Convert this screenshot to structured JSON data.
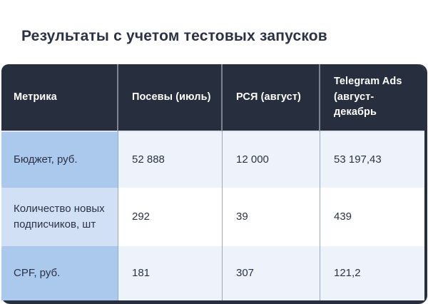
{
  "page": {
    "background": "#ffffff"
  },
  "colors": {
    "header_bg": "#272e3d",
    "header_text": "#ffffff",
    "title_text": "#2b3245",
    "label_blue": "#abc9ed",
    "label_blue_light": "#d2e0f6",
    "cell_light": "#eef3fb",
    "cell_white": "#ffffff",
    "divider_header": "#7d8390",
    "divider_body": "#9fa8b6"
  },
  "chart_data": {
    "type": "table",
    "title": "Результаты с учетом тестовых запусков",
    "columns": [
      "Метрика",
      "Посевы (июль)",
      "РСЯ (август)",
      "Telegram Ads (август-декабрь"
    ],
    "rows": [
      {
        "label": "Бюджет, руб.",
        "values": [
          "52 888",
          "12 000",
          "53 197,43"
        ]
      },
      {
        "label": "Количество новых подписчиков, шт",
        "values": [
          "292",
          "39",
          "439"
        ]
      },
      {
        "label": "CPF, руб.",
        "values": [
          "181",
          "307",
          "121,2"
        ]
      }
    ],
    "numeric_rows": [
      {
        "metric": "Бюджет, руб.",
        "values": [
          52888,
          12000,
          53197.43
        ]
      },
      {
        "metric": "Количество новых подписчиков, шт",
        "values": [
          292,
          39,
          439
        ]
      },
      {
        "metric": "CPF, руб.",
        "values": [
          181,
          307,
          121.2
        ]
      }
    ]
  }
}
